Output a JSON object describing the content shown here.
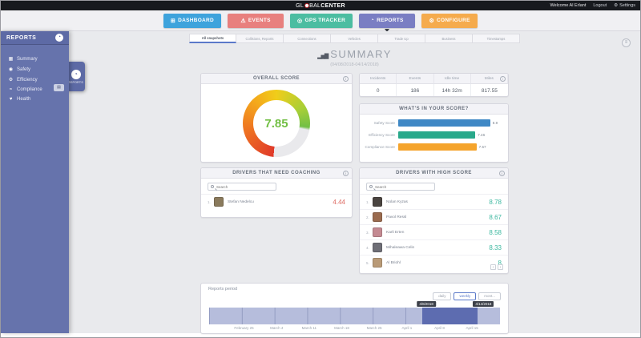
{
  "topbar": {
    "logo_pre": "GL",
    "logo_mid": "BAL",
    "logo_post": "CENTER",
    "welcome": "Welcome Al Erlant",
    "logout": "Logout",
    "settings": "Settings"
  },
  "nav": {
    "items": [
      {
        "label": "DASHBOARD",
        "color": "#3ea3dc"
      },
      {
        "label": "EVENTS",
        "color": "#e8807e"
      },
      {
        "label": "GPS TRACKER",
        "color": "#4cbda1"
      },
      {
        "label": "REPORTS",
        "color": "#7a7ec3"
      },
      {
        "label": "CONFIGURE",
        "color": "#f5ab4d"
      }
    ]
  },
  "icons": {
    "dashboard": "⊞",
    "events": "⚠",
    "gps": "◎",
    "reports": "◔",
    "configure": "⚙",
    "summary": "▦",
    "safety": "◉",
    "efficiency": "⚙",
    "compliance": "≈",
    "health": "♥",
    "gear": "⚙",
    "pie": "◔",
    "bars": "▂▅▇",
    "menu": "≡",
    "mini": "▤"
  },
  "sidebar": {
    "title": "REPORTS",
    "items": [
      {
        "label": "Summary"
      },
      {
        "label": "Safety"
      },
      {
        "label": "Efficiency"
      },
      {
        "label": "Compliance"
      },
      {
        "label": "Health"
      }
    ],
    "badge_label": "REPORTS"
  },
  "tabs": [
    {
      "label": "All snapshots",
      "active": true
    },
    {
      "label": "Collisions, Reports"
    },
    {
      "label": "Connections"
    },
    {
      "label": "Vehicles"
    },
    {
      "label": "Trade Up"
    },
    {
      "label": "Business"
    },
    {
      "label": "Timestamps"
    }
  ],
  "page": {
    "title": "SUMMARY",
    "date_range": "(04/08/2018-04/14/2018)"
  },
  "overall_score": {
    "title": "OVERALL SCORE",
    "value": "7.85",
    "value_color": "#72bf44"
  },
  "stats": {
    "headers": [
      "Incidents",
      "Events",
      "Idle time",
      "Miles"
    ],
    "values": [
      "0",
      "186",
      "14h 32m",
      "817.55"
    ]
  },
  "score_breakdown": {
    "title": "WHAT'S IN YOUR SCORE?",
    "max": 10,
    "bars": [
      {
        "label": "Safety Score",
        "value": 8.9,
        "display": "8.9",
        "color": "#3f88c5"
      },
      {
        "label": "Efficiency Score",
        "value": 7.46,
        "display": "7.46",
        "color": "#29a98b"
      },
      {
        "label": "Compliance Score",
        "value": 7.57,
        "display": "7.57",
        "color": "#f5a42c"
      }
    ]
  },
  "coaching": {
    "title": "DRIVERS THAT NEED COACHING",
    "search_placeholder": "Search",
    "score_color": "#dd6a62",
    "rows": [
      {
        "rank": "1.",
        "name": "Stefan Nedelcu",
        "score": "4.44",
        "avatar_color": "#8a7a5c"
      }
    ]
  },
  "high_score": {
    "title": "DRIVERS WITH HIGH SCORE",
    "search_placeholder": "Search",
    "score_color": "#3cb8a0",
    "rows": [
      {
        "rank": "1.",
        "name": "Nolan Kyzas",
        "score": "8.78",
        "avatar_color": "#4a4440"
      },
      {
        "rank": "2.",
        "name": "Pavol Ressl",
        "score": "8.67",
        "avatar_color": "#9a6b4f"
      },
      {
        "rank": "3.",
        "name": "Karli Erten",
        "score": "8.58",
        "avatar_color": "#c48a92"
      },
      {
        "rank": "4.",
        "name": "Mihaleawa Celin",
        "score": "8.33",
        "avatar_color": "#6e6e76"
      },
      {
        "rank": "5.",
        "name": "Al Briohl",
        "score": "8",
        "avatar_color": "#b99a77"
      }
    ],
    "pagination": [
      "‹",
      "›"
    ]
  },
  "period": {
    "label": "Reports period",
    "buttons": [
      {
        "label": "daily"
      },
      {
        "label": "weekly",
        "active": true
      },
      {
        "label": "mont..."
      }
    ],
    "tooltip_start": "4/8/2018",
    "tooltip_end": "4/14/2018",
    "axis_labels": [
      "February 25",
      "March 4",
      "March 11",
      "March 18",
      "March 25",
      "April 1",
      "April 8",
      "April 15"
    ]
  }
}
